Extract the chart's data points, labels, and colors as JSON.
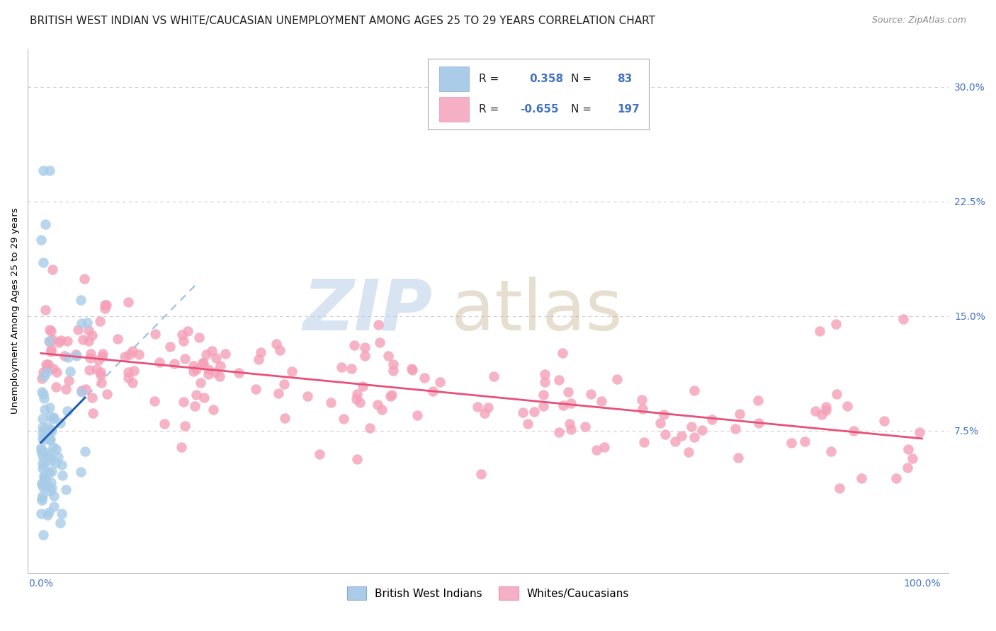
{
  "title": "BRITISH WEST INDIAN VS WHITE/CAUCASIAN UNEMPLOYMENT AMONG AGES 25 TO 29 YEARS CORRELATION CHART",
  "source": "Source: ZipAtlas.com",
  "ylabel": "Unemployment Among Ages 25 to 29 years",
  "ytick_labels": [
    "7.5%",
    "15.0%",
    "22.5%",
    "30.0%"
  ],
  "ytick_values": [
    0.075,
    0.15,
    0.225,
    0.3
  ],
  "xtick_labels": [
    "0.0%",
    "100.0%"
  ],
  "xtick_values": [
    0.0,
    1.0
  ],
  "xlim": [
    -0.015,
    1.03
  ],
  "ylim": [
    -0.018,
    0.325
  ],
  "blue_R": 0.358,
  "blue_N": 83,
  "pink_R": -0.655,
  "pink_N": 197,
  "blue_scatter_color": "#a8cce8",
  "blue_line_color": "#2060b0",
  "blue_dash_color": "#90b8e0",
  "pink_scatter_color": "#f5a0b8",
  "pink_line_color": "#e8507a",
  "grid_color": "#cccccc",
  "legend_label_blue": "British West Indians",
  "legend_label_pink": "Whites/Caucasians",
  "title_fontsize": 11,
  "source_fontsize": 9,
  "axis_label_fontsize": 9.5,
  "tick_fontsize": 10,
  "legend_fontsize": 10,
  "tick_color": "#4472C4"
}
